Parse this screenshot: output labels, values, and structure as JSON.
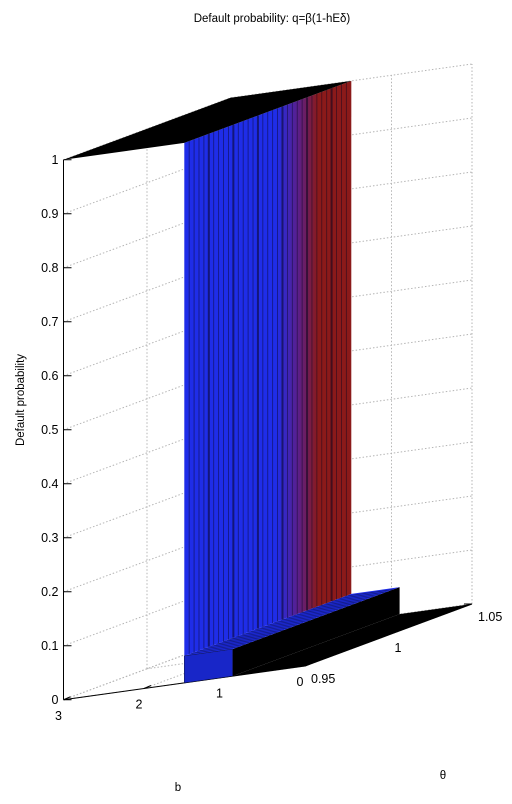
{
  "chart_data": {
    "type": "surface",
    "title": "Default probability: q=β(1-hEδ)",
    "xlabel": "b",
    "ylabel": "θ",
    "zlabel": "Default probability",
    "x_ticks": [
      "3",
      "2",
      "1",
      "0"
    ],
    "y_ticks": [
      "0.95",
      "1",
      "1.05"
    ],
    "z_ticks": [
      "0",
      "0.1",
      "0.2",
      "0.3",
      "0.4",
      "0.5",
      "0.6",
      "0.7",
      "0.8",
      "0.9",
      "1"
    ],
    "xlim": [
      0,
      3
    ],
    "ylim": [
      0.95,
      1.05
    ],
    "zlim": [
      0,
      1
    ],
    "grid": true,
    "regions": [
      {
        "b_range": [
          1.5,
          3
        ],
        "theta_range": [
          0.95,
          1.05
        ],
        "q": 1
      },
      {
        "b_range": [
          0.9,
          1.5
        ],
        "theta_range": [
          0.95,
          1.05
        ],
        "q": 0.05
      },
      {
        "b_range": [
          0,
          0.9
        ],
        "theta_range": [
          0.95,
          1.05
        ],
        "q": 0
      }
    ],
    "colors": {
      "high": "#8b1a1a",
      "mid": "#1f2de8",
      "low": "#000000"
    }
  }
}
